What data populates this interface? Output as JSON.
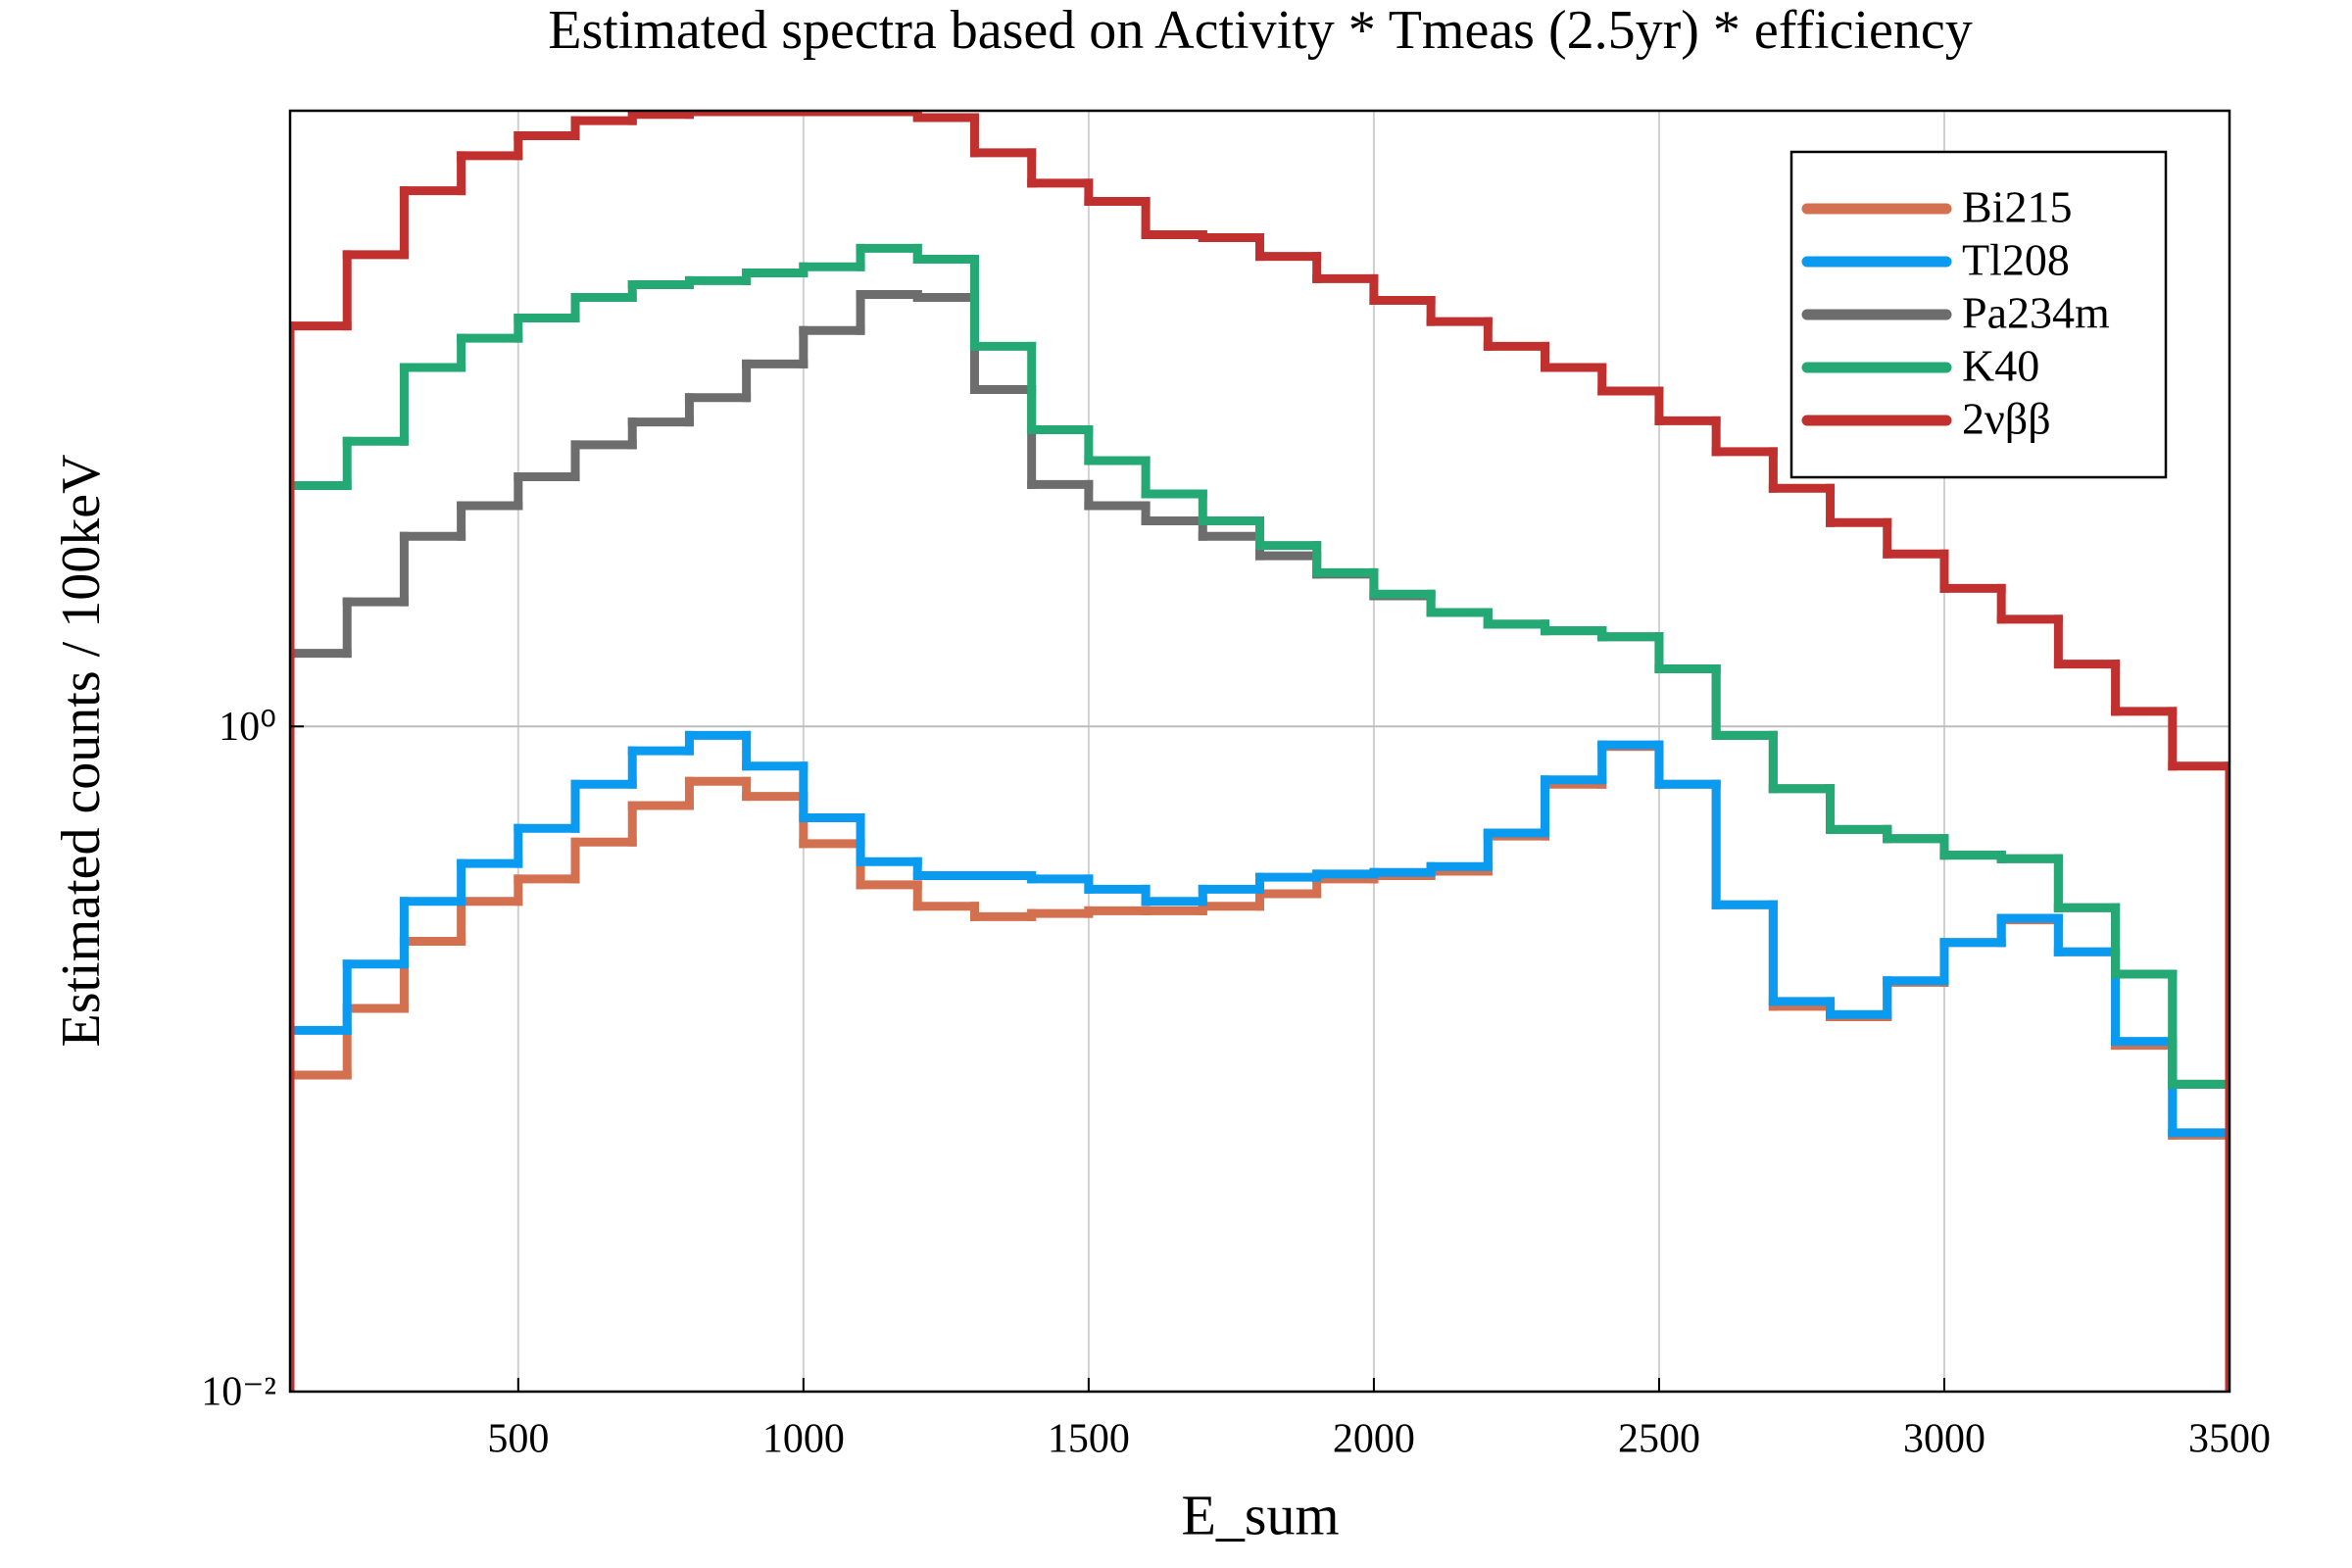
{
  "chart_data": {
    "type": "histogram",
    "title": "Estimated spectra based on Activity * Tmeas (2.5yr) * efficiency",
    "x_label": "E_sum",
    "y_label": "Estimated counts / 100keV",
    "bins": [
      100,
      200,
      300,
      400,
      500,
      600,
      700,
      800,
      900,
      1000,
      1100,
      1200,
      1300,
      1400,
      1500,
      1600,
      1700,
      1800,
      1900,
      2000,
      2100,
      2200,
      2300,
      2400,
      2500,
      2600,
      2700,
      2800,
      2900,
      3000,
      3100,
      3200,
      3300,
      3400,
      3500
    ],
    "xlim": [
      100,
      3500
    ],
    "xticks": [
      500,
      1000,
      1500,
      2000,
      2500,
      3000,
      3500
    ],
    "ylim": [
      0.01,
      71
    ],
    "yticks": [
      {
        "value": 0.01,
        "label": "10⁻²"
      },
      {
        "value": 1,
        "label": "10⁰"
      }
    ],
    "log_y": true,
    "grid": true,
    "legend": "top-right",
    "series": [
      {
        "name": "Bi215",
        "color": "#d3704f",
        "values": [
          0.0895,
          0.142,
          0.226,
          0.298,
          0.348,
          0.449,
          0.578,
          0.684,
          0.616,
          0.444,
          0.334,
          0.288,
          0.268,
          0.274,
          0.279,
          0.279,
          0.288,
          0.314,
          0.348,
          0.356,
          0.367,
          0.468,
          0.67,
          0.87,
          0.67,
          0.291,
          0.144,
          0.134,
          0.17,
          0.224,
          0.262,
          0.21,
          0.11,
          0.059
        ]
      },
      {
        "name": "Tl208",
        "color": "#0a9bf0",
        "values": [
          0.122,
          0.193,
          0.298,
          0.387,
          0.494,
          0.67,
          0.845,
          0.94,
          0.76,
          0.531,
          0.392,
          0.356,
          0.356,
          0.348,
          0.324,
          0.298,
          0.324,
          0.352,
          0.36,
          0.364,
          0.379,
          0.478,
          0.691,
          0.88,
          0.67,
          0.291,
          0.149,
          0.136,
          0.172,
          0.224,
          0.265,
          0.21,
          0.113,
          0.06
        ]
      },
      {
        "name": "Pa234m",
        "color": "#6d6d6d",
        "values": [
          1.66,
          2.37,
          3.73,
          4.61,
          5.63,
          7.03,
          8.23,
          9.74,
          12.3,
          15.5,
          19.9,
          19.5,
          10.3,
          5.34,
          4.61,
          4.15,
          3.73,
          3.26,
          2.87,
          2.47,
          2.2,
          2.03,
          1.94,
          1.86,
          1.49,
          0.94,
          0.65,
          0.49,
          0.46,
          0.41,
          0.4,
          0.285,
          0.18,
          0.084
        ]
      },
      {
        "name": "K40",
        "color": "#24a874",
        "values": [
          5.3,
          7.2,
          12.0,
          14.7,
          16.9,
          19.5,
          21.3,
          21.9,
          23.1,
          24.1,
          27.4,
          25.4,
          13.9,
          7.8,
          6.3,
          5.0,
          4.15,
          3.5,
          2.9,
          2.5,
          2.2,
          2.03,
          1.94,
          1.86,
          1.49,
          0.94,
          0.65,
          0.49,
          0.46,
          0.41,
          0.4,
          0.285,
          0.18,
          0.084
        ]
      },
      {
        "name": "2νββ",
        "color": "#c0302f",
        "values": [
          16.0,
          26.2,
          40.8,
          52.0,
          59.7,
          66.3,
          69.2,
          70.5,
          70.5,
          70.5,
          70.5,
          67.7,
          53.1,
          43.0,
          37.9,
          30.1,
          29.5,
          25.9,
          22.2,
          19.1,
          16.5,
          13.9,
          12.0,
          10.2,
          8.3,
          6.7,
          5.2,
          4.1,
          3.3,
          2.6,
          2.1,
          1.54,
          1.11,
          0.76
        ]
      }
    ]
  }
}
